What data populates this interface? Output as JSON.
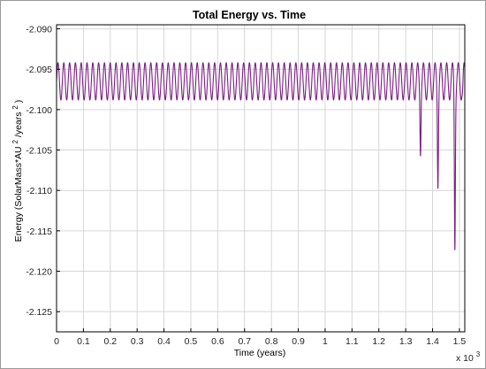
{
  "chart_data": {
    "type": "line",
    "title": "Total Energy vs. Time",
    "xlabel": "Time (years)",
    "ylabel_parts": [
      "Energy (SolarMass*AU",
      "2",
      "/years",
      "2",
      ")"
    ],
    "x_multiplier": {
      "base": "x 10",
      "exp": "3"
    },
    "xlim": [
      0,
      1.52
    ],
    "ylim": [
      -2.1275,
      -2.0895
    ],
    "x_ticks": [
      0,
      0.1,
      0.2,
      0.3,
      0.4,
      0.5,
      0.6,
      0.7,
      0.8,
      0.9,
      1,
      1.1,
      1.2,
      1.3,
      1.4,
      1.5
    ],
    "x_tick_labels": [
      "0",
      "0.1",
      "0.2",
      "0.3",
      "0.4",
      "0.5",
      "0.6",
      "0.7",
      "0.8",
      "0.9",
      "1",
      "1.1",
      "1.2",
      "1.3",
      "1.4",
      "1.5"
    ],
    "y_ticks": [
      -2.09,
      -2.095,
      -2.1,
      -2.105,
      -2.11,
      -2.115,
      -2.12,
      -2.125
    ],
    "y_tick_labels": [
      "-2.090",
      "-2.095",
      "-2.100",
      "-2.105",
      "-2.110",
      "-2.115",
      "-2.120",
      "-2.125"
    ],
    "grid": true,
    "series": [
      {
        "color": "#7a1e82",
        "oscillation": {
          "period": 0.0216,
          "baseline": -2.0965,
          "amplitude": 0.0023
        },
        "spikes": [
          {
            "x": 1.355,
            "y": -2.1035
          },
          {
            "x": 1.42,
            "y": -2.1075
          },
          {
            "x": 1.483,
            "y": -2.1155
          },
          {
            "x": 1.512,
            "y": -2.0975
          }
        ]
      }
    ]
  }
}
